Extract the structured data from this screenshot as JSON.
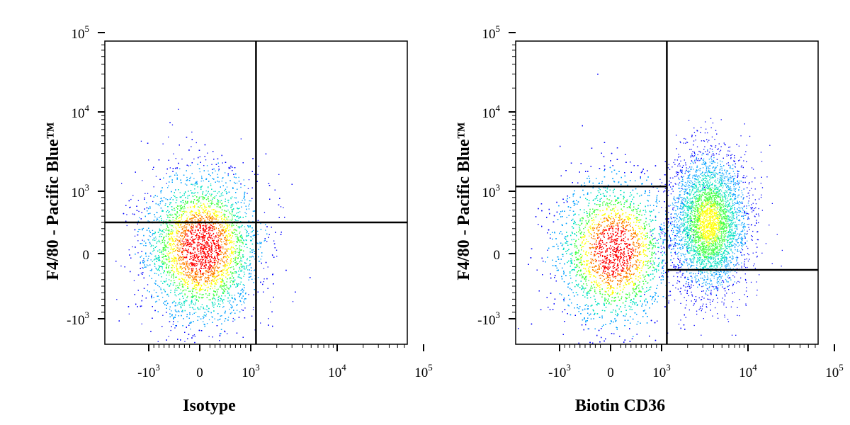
{
  "chart_data": [
    {
      "type": "scatter",
      "xlabel": "Isotype",
      "ylabel": "F4/80 - Pacific Blue™",
      "x_scale": "biexponential",
      "y_scale": "biexponential",
      "x_ticks": [
        {
          "value": -1000,
          "base": "-10",
          "exp": "3"
        },
        {
          "value": 0,
          "base": "0",
          "exp": ""
        },
        {
          "value": 1000,
          "base": "10",
          "exp": "3"
        },
        {
          "value": 10000,
          "base": "10",
          "exp": "4"
        },
        {
          "value": 100000,
          "base": "10",
          "exp": "5"
        }
      ],
      "y_ticks": [
        {
          "value": -1000,
          "base": "-10",
          "exp": "3"
        },
        {
          "value": 0,
          "base": "0",
          "exp": ""
        },
        {
          "value": 1000,
          "base": "10",
          "exp": "3"
        },
        {
          "value": 10000,
          "base": "10",
          "exp": "4"
        },
        {
          "value": 100000,
          "base": "10",
          "exp": "5"
        }
      ],
      "gates": {
        "x_threshold": 1150,
        "y_threshold": 500
      },
      "populations": [
        {
          "x_center": 30,
          "y_center": 100,
          "density": "high"
        }
      ],
      "colormap": [
        "#0000ff",
        "#00a0ff",
        "#00e0c0",
        "#40ff40",
        "#ffff00",
        "#ff8000",
        "#ff0000"
      ]
    },
    {
      "type": "scatter",
      "xlabel": "Biotin CD36",
      "ylabel": "F4/80 - Pacific Blue™",
      "x_scale": "biexponential",
      "y_scale": "biexponential",
      "x_ticks": [
        {
          "value": -1000,
          "base": "-10",
          "exp": "3"
        },
        {
          "value": 0,
          "base": "0",
          "exp": ""
        },
        {
          "value": 1000,
          "base": "10",
          "exp": "3"
        },
        {
          "value": 10000,
          "base": "10",
          "exp": "4"
        },
        {
          "value": 100000,
          "base": "10",
          "exp": "5"
        }
      ],
      "y_ticks": [
        {
          "value": -1000,
          "base": "-10",
          "exp": "3"
        },
        {
          "value": 0,
          "base": "0",
          "exp": ""
        },
        {
          "value": 1000,
          "base": "10",
          "exp": "3"
        },
        {
          "value": 10000,
          "base": "10",
          "exp": "4"
        },
        {
          "value": 100000,
          "base": "10",
          "exp": "5"
        }
      ],
      "gates": {
        "x_threshold": 1150,
        "y_threshold_left": 1150,
        "y_threshold_right": -250
      },
      "populations": [
        {
          "x_center": 60,
          "y_center": 50,
          "density": "high"
        },
        {
          "x_center": 3500,
          "y_center": 500,
          "density": "medium"
        }
      ],
      "colormap": [
        "#0000ff",
        "#00a0ff",
        "#00e0c0",
        "#40ff40",
        "#ffff00",
        "#ff8000",
        "#ff0000"
      ]
    }
  ]
}
